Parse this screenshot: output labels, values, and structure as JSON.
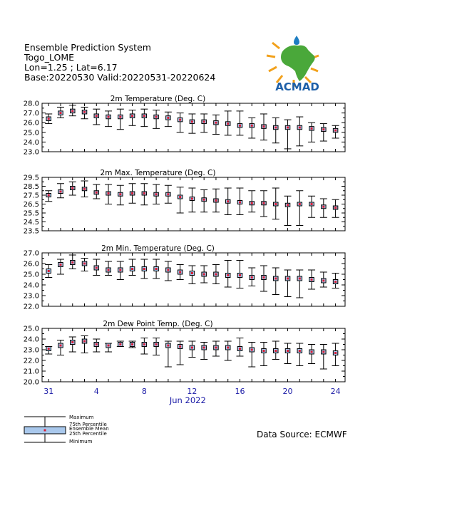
{
  "header": {
    "system": "Ensemble Prediction System",
    "location": "Togo_LOME",
    "coords": "Lon=1.25 ; Lat=6.17",
    "dates": "Base:20220530 Valid:20220531-20220624"
  },
  "logo": {
    "text": "ACMAD"
  },
  "source": "Data Source: ECMWF",
  "xaxis": {
    "tick_labels": [
      "31",
      "4",
      "8",
      "12",
      "16",
      "20",
      "24"
    ],
    "month_label": "Jun 2022"
  },
  "legend": {
    "labels": [
      "Maximum",
      "75th Percentile",
      "Ensemble Mean",
      "25th Percentile",
      "Minimum"
    ]
  },
  "colors": {
    "box_fill": "#a9c8ec",
    "mean_marker": "#d81e36",
    "tick_text": "#1a1aa6"
  },
  "chart_data": [
    {
      "type": "box",
      "title": "2m Temperature (Deg. C)",
      "x": [
        "31",
        "1",
        "2",
        "3",
        "4",
        "5",
        "6",
        "7",
        "8",
        "9",
        "10",
        "11",
        "12",
        "13",
        "14",
        "15",
        "16",
        "17",
        "18",
        "19",
        "20",
        "21",
        "22",
        "23",
        "24"
      ],
      "ylim": [
        23.0,
        28.0
      ],
      "yticks": [
        "28.0",
        "27.0",
        "26.0",
        "25.0",
        "24.0",
        "23.0"
      ],
      "mean": [
        26.4,
        27.0,
        27.2,
        27.1,
        26.7,
        26.6,
        26.6,
        26.7,
        26.7,
        26.6,
        26.5,
        26.3,
        26.1,
        26.1,
        26.0,
        25.9,
        25.7,
        25.7,
        25.6,
        25.5,
        25.5,
        25.5,
        25.4,
        25.3,
        25.2
      ],
      "q75": [
        26.6,
        27.2,
        27.4,
        27.3,
        26.9,
        26.8,
        26.8,
        26.9,
        26.9,
        26.8,
        26.7,
        26.5,
        26.3,
        26.3,
        26.2,
        26.1,
        25.9,
        25.9,
        25.8,
        25.7,
        25.7,
        25.7,
        25.6,
        25.5,
        25.4
      ],
      "q25": [
        26.2,
        26.8,
        27.0,
        26.9,
        26.5,
        26.4,
        26.4,
        26.5,
        26.5,
        26.4,
        26.3,
        26.1,
        25.9,
        25.9,
        25.8,
        25.7,
        25.5,
        25.5,
        25.4,
        25.3,
        25.3,
        25.3,
        25.2,
        25.1,
        25.0
      ],
      "max": [
        26.9,
        27.6,
        27.8,
        27.6,
        27.4,
        27.2,
        27.4,
        27.3,
        27.4,
        27.3,
        27.1,
        27.0,
        26.9,
        26.9,
        26.8,
        27.2,
        27.2,
        26.5,
        26.9,
        26.5,
        26.3,
        26.6,
        26.0,
        25.9,
        25.7
      ],
      "min": [
        25.9,
        26.5,
        26.7,
        26.4,
        25.8,
        25.6,
        25.3,
        25.7,
        25.6,
        25.4,
        25.6,
        25.0,
        24.9,
        25.0,
        24.8,
        24.7,
        24.7,
        24.4,
        24.2,
        23.9,
        23.3,
        23.6,
        24.0,
        24.1,
        24.4
      ]
    },
    {
      "type": "box",
      "title": "2m Max. Temperature (Deg. C)",
      "x": [
        "31",
        "1",
        "2",
        "3",
        "4",
        "5",
        "6",
        "7",
        "8",
        "9",
        "10",
        "11",
        "12",
        "13",
        "14",
        "15",
        "16",
        "17",
        "18",
        "19",
        "20",
        "21",
        "22",
        "23",
        "24"
      ],
      "ylim": [
        23.5,
        29.5
      ],
      "yticks": [
        "29.5",
        "28.5",
        "27.5",
        "26.5",
        "25.5",
        "24.5",
        "23.5"
      ],
      "mean": [
        27.5,
        27.9,
        28.3,
        28.2,
        27.8,
        27.7,
        27.6,
        27.7,
        27.7,
        27.6,
        27.6,
        27.3,
        27.1,
        27.0,
        26.9,
        26.8,
        26.7,
        26.6,
        26.6,
        26.5,
        26.4,
        26.5,
        26.5,
        26.2,
        26.1
      ],
      "q75": [
        27.7,
        28.1,
        28.5,
        28.4,
        28.0,
        27.9,
        27.8,
        27.9,
        27.9,
        27.8,
        27.8,
        27.5,
        27.3,
        27.2,
        27.1,
        27.0,
        26.9,
        26.8,
        26.8,
        26.7,
        26.6,
        26.7,
        26.7,
        26.4,
        26.3
      ],
      "q25": [
        27.3,
        27.7,
        28.1,
        28.0,
        27.6,
        27.5,
        27.4,
        27.5,
        27.5,
        27.4,
        27.4,
        27.1,
        26.9,
        26.8,
        26.7,
        26.6,
        26.5,
        26.4,
        26.4,
        26.3,
        26.2,
        26.3,
        26.3,
        26.0,
        25.9
      ],
      "max": [
        28.0,
        28.8,
        29.0,
        29.1,
        28.7,
        28.7,
        28.6,
        28.8,
        28.8,
        28.7,
        28.6,
        28.4,
        28.3,
        28.1,
        28.2,
        28.3,
        28.3,
        28.0,
        28.0,
        28.3,
        27.4,
        28.0,
        27.4,
        27.1,
        27.0
      ],
      "min": [
        26.8,
        27.2,
        27.5,
        27.3,
        27.1,
        26.5,
        26.4,
        26.6,
        26.4,
        26.5,
        26.6,
        25.5,
        25.6,
        25.6,
        25.6,
        25.3,
        25.3,
        25.6,
        25.1,
        24.8,
        24.1,
        24.1,
        25.0,
        25.0,
        25.0
      ]
    },
    {
      "type": "box",
      "title": "2m Min. Temperature (Deg. C)",
      "x": [
        "31",
        "1",
        "2",
        "3",
        "4",
        "5",
        "6",
        "7",
        "8",
        "9",
        "10",
        "11",
        "12",
        "13",
        "14",
        "15",
        "16",
        "17",
        "18",
        "19",
        "20",
        "21",
        "22",
        "23",
        "24"
      ],
      "ylim": [
        22.0,
        27.0
      ],
      "yticks": [
        "27.0",
        "26.0",
        "25.0",
        "24.0",
        "23.0",
        "22.0"
      ],
      "mean": [
        25.3,
        25.9,
        26.1,
        26.0,
        25.6,
        25.4,
        25.4,
        25.5,
        25.5,
        25.5,
        25.4,
        25.2,
        25.1,
        25.0,
        25.0,
        24.9,
        24.9,
        24.7,
        24.7,
        24.6,
        24.6,
        24.6,
        24.5,
        24.4,
        24.3
      ],
      "q75": [
        25.5,
        26.1,
        26.3,
        26.2,
        25.8,
        25.6,
        25.6,
        25.7,
        25.7,
        25.7,
        25.6,
        25.4,
        25.3,
        25.2,
        25.2,
        25.1,
        25.1,
        24.9,
        24.9,
        24.8,
        24.8,
        24.8,
        24.7,
        24.6,
        24.5
      ],
      "q25": [
        25.1,
        25.7,
        25.9,
        25.8,
        25.4,
        25.2,
        25.2,
        25.3,
        25.3,
        25.3,
        25.2,
        25.0,
        24.9,
        24.8,
        24.8,
        24.7,
        24.7,
        24.5,
        24.5,
        24.4,
        24.4,
        24.4,
        24.3,
        24.2,
        24.1
      ],
      "max": [
        25.9,
        26.4,
        26.8,
        26.5,
        26.4,
        26.2,
        26.2,
        26.4,
        26.4,
        26.4,
        26.2,
        25.9,
        25.8,
        25.8,
        25.9,
        26.3,
        26.3,
        25.6,
        25.8,
        25.6,
        25.4,
        25.4,
        25.4,
        25.2,
        25.1
      ],
      "min": [
        24.7,
        25.0,
        25.5,
        25.3,
        24.9,
        24.9,
        24.5,
        24.9,
        24.6,
        24.6,
        24.4,
        24.5,
        24.1,
        24.2,
        24.1,
        23.8,
        23.7,
        23.9,
        23.4,
        23.1,
        22.9,
        22.8,
        23.6,
        23.8,
        23.7
      ]
    },
    {
      "type": "box",
      "title": "2m Dew Point Temp. (Deg. C)",
      "x": [
        "31",
        "1",
        "2",
        "3",
        "4",
        "5",
        "6",
        "7",
        "8",
        "9",
        "10",
        "11",
        "12",
        "13",
        "14",
        "15",
        "16",
        "17",
        "18",
        "19",
        "20",
        "21",
        "22",
        "23",
        "24"
      ],
      "ylim": [
        20.0,
        25.0
      ],
      "yticks": [
        "25.0",
        "24.0",
        "23.0",
        "22.0",
        "21.0",
        "20.0"
      ],
      "mean": [
        23.1,
        23.4,
        23.7,
        23.8,
        23.5,
        23.4,
        23.5,
        23.5,
        23.5,
        23.5,
        23.4,
        23.3,
        23.2,
        23.2,
        23.2,
        23.2,
        23.1,
        23.0,
        22.9,
        22.9,
        22.9,
        22.9,
        22.8,
        22.8,
        22.7
      ],
      "q75": [
        23.3,
        23.6,
        23.9,
        24.0,
        23.7,
        23.6,
        23.7,
        23.7,
        23.7,
        23.7,
        23.6,
        23.5,
        23.4,
        23.4,
        23.4,
        23.4,
        23.3,
        23.2,
        23.1,
        23.1,
        23.1,
        23.1,
        23.0,
        23.0,
        22.9
      ],
      "q25": [
        22.9,
        23.2,
        23.5,
        23.6,
        23.3,
        23.2,
        23.3,
        23.3,
        23.3,
        23.3,
        23.2,
        23.1,
        23.0,
        23.0,
        23.0,
        23.0,
        22.9,
        22.8,
        22.7,
        22.7,
        22.7,
        22.7,
        22.6,
        22.6,
        22.5
      ],
      "max": [
        23.3,
        23.9,
        24.2,
        24.3,
        24.0,
        23.6,
        23.8,
        23.8,
        24.1,
        24.1,
        23.8,
        23.8,
        23.8,
        23.7,
        23.8,
        23.8,
        24.1,
        23.7,
        23.7,
        23.8,
        23.6,
        23.6,
        23.5,
        23.5,
        23.6
      ],
      "min": [
        22.6,
        22.5,
        22.8,
        22.7,
        22.8,
        22.8,
        23.3,
        23.2,
        22.6,
        22.5,
        21.4,
        21.6,
        22.3,
        22.1,
        22.4,
        22.0,
        22.4,
        21.4,
        21.5,
        22.1,
        21.7,
        21.5,
        21.7,
        21.2,
        21.5
      ]
    }
  ]
}
